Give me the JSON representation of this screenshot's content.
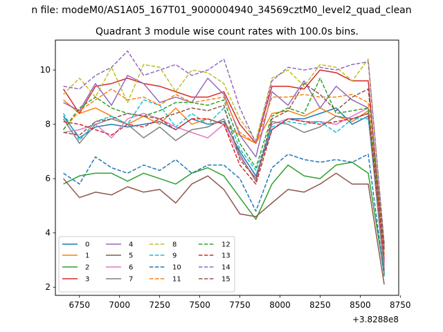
{
  "figure_title": "n file: modeM0/AS1A05_167T01_9000004940_34569cztM0_level2_quad_clean",
  "chart_data": {
    "type": "line",
    "title": "Quadrant 3 module wise count rates with 100.0s bins.",
    "xlabel": "",
    "ylabel": "",
    "x_offset_label": "+3.8288e8",
    "xlim": [
      6600,
      8740
    ],
    "ylim": [
      1.7,
      11.1
    ],
    "xticks": [
      6750,
      7000,
      7250,
      7500,
      7750,
      8000,
      8250,
      8500,
      8750
    ],
    "yticks": [
      2,
      4,
      6,
      8,
      10
    ],
    "grid": false,
    "legend_position": "lower-left",
    "x": [
      6650,
      6750,
      6850,
      6950,
      7050,
      7150,
      7250,
      7350,
      7450,
      7550,
      7650,
      7750,
      7850,
      7950,
      8050,
      8150,
      8250,
      8350,
      8450,
      8550,
      8650
    ],
    "series": [
      {
        "name": "0",
        "color": "#1f77b4",
        "dash": "solid",
        "values": [
          8.3,
          7.5,
          7.9,
          8.0,
          7.9,
          8.0,
          8.1,
          7.8,
          8.2,
          8.0,
          8.1,
          7.0,
          6.1,
          7.8,
          8.2,
          8.2,
          8.4,
          8.6,
          8.0,
          8.3,
          2.6
        ]
      },
      {
        "name": "1",
        "color": "#ff7f0e",
        "dash": "solid",
        "values": [
          8.9,
          8.4,
          8.6,
          8.3,
          8.0,
          8.3,
          8.0,
          8.6,
          8.0,
          8.2,
          8.0,
          7.6,
          7.3,
          8.4,
          8.5,
          8.3,
          8.6,
          8.3,
          8.1,
          8.5,
          2.8
        ]
      },
      {
        "name": "2",
        "color": "#2ca02c",
        "dash": "solid",
        "values": [
          5.8,
          6.1,
          6.2,
          6.2,
          5.9,
          6.2,
          6.0,
          5.8,
          6.2,
          6.4,
          6.1,
          5.3,
          4.5,
          5.8,
          6.5,
          6.1,
          6.0,
          6.5,
          6.6,
          6.2,
          2.5
        ]
      },
      {
        "name": "3",
        "color": "#d62728",
        "dash": "solid",
        "values": [
          9.3,
          8.4,
          9.4,
          9.5,
          9.7,
          9.5,
          9.4,
          9.2,
          9.0,
          9.0,
          9.2,
          8.0,
          7.3,
          9.4,
          9.4,
          9.3,
          10.0,
          9.9,
          9.6,
          9.6,
          3.0
        ]
      },
      {
        "name": "4",
        "color": "#9467bd",
        "dash": "solid",
        "values": [
          8.8,
          8.5,
          9.5,
          8.7,
          9.8,
          9.5,
          8.8,
          9.0,
          8.8,
          9.7,
          9.1,
          7.6,
          6.8,
          9.2,
          8.7,
          9.6,
          8.6,
          9.4,
          8.9,
          8.6,
          2.9
        ]
      },
      {
        "name": "5",
        "color": "#8c564b",
        "dash": "solid",
        "values": [
          6.0,
          5.3,
          5.5,
          5.4,
          5.7,
          5.5,
          5.6,
          5.1,
          5.8,
          6.1,
          5.6,
          4.7,
          4.6,
          5.1,
          5.6,
          5.5,
          5.8,
          6.2,
          5.8,
          5.8,
          2.1
        ]
      },
      {
        "name": "6",
        "color": "#e377c2",
        "dash": "solid",
        "values": [
          7.7,
          7.8,
          8.0,
          7.5,
          8.2,
          8.4,
          8.2,
          7.9,
          7.7,
          7.5,
          8.0,
          6.8,
          6.0,
          8.0,
          8.2,
          8.1,
          8.1,
          8.0,
          8.3,
          8.6,
          2.7
        ]
      },
      {
        "name": "7",
        "color": "#7f7f7f",
        "dash": "solid",
        "values": [
          8.2,
          7.3,
          8.0,
          8.2,
          8.0,
          7.5,
          7.9,
          7.4,
          7.8,
          7.9,
          8.2,
          6.9,
          5.9,
          8.1,
          8.0,
          7.7,
          7.9,
          8.3,
          8.2,
          8.4,
          2.6
        ]
      },
      {
        "name": "8",
        "color": "#bcbd22",
        "dash": "dashed",
        "values": [
          9.1,
          9.7,
          9.0,
          10.1,
          8.8,
          10.2,
          10.1,
          9.2,
          10.0,
          9.9,
          9.5,
          8.2,
          7.4,
          9.7,
          10.0,
          9.4,
          10.2,
          10.1,
          9.6,
          10.4,
          3.5
        ]
      },
      {
        "name": "9",
        "color": "#17becf",
        "dash": "dashed",
        "values": [
          8.4,
          7.4,
          8.1,
          8.3,
          8.0,
          8.9,
          8.7,
          7.9,
          8.4,
          8.0,
          8.6,
          7.1,
          6.3,
          7.9,
          8.1,
          8.0,
          8.1,
          7.7,
          8.2,
          8.2,
          3.3
        ]
      },
      {
        "name": "10",
        "color": "#1f77b4",
        "dash": "dashed",
        "values": [
          6.2,
          5.8,
          6.8,
          6.4,
          6.2,
          6.5,
          6.3,
          6.7,
          6.2,
          6.5,
          6.5,
          6.0,
          4.8,
          6.4,
          6.9,
          6.7,
          6.6,
          6.7,
          6.6,
          6.9,
          2.4
        ]
      },
      {
        "name": "11",
        "color": "#ff7f0e",
        "dash": "dashed",
        "values": [
          7.8,
          8.5,
          8.9,
          9.3,
          8.9,
          9.0,
          8.7,
          9.1,
          8.8,
          8.9,
          9.0,
          7.7,
          7.3,
          9.0,
          9.0,
          9.1,
          9.0,
          9.0,
          9.1,
          8.8,
          3.2
        ]
      },
      {
        "name": "12",
        "color": "#2ca02c",
        "dash": "dashed",
        "values": [
          7.8,
          8.6,
          9.0,
          8.6,
          8.4,
          8.3,
          8.5,
          8.8,
          8.8,
          8.7,
          8.9,
          7.3,
          6.4,
          8.3,
          8.6,
          8.4,
          9.7,
          8.4,
          8.5,
          8.6,
          3.6
        ]
      },
      {
        "name": "13",
        "color": "#d62728",
        "dash": "dashed",
        "values": [
          8.1,
          8.0,
          7.8,
          7.6,
          8.0,
          7.9,
          8.2,
          7.8,
          8.2,
          8.2,
          8.0,
          6.5,
          5.8,
          7.8,
          8.2,
          8.1,
          8.0,
          8.1,
          8.2,
          8.4,
          3.1
        ]
      },
      {
        "name": "14",
        "color": "#9467bd",
        "dash": "dashed",
        "values": [
          9.4,
          9.3,
          9.8,
          10.1,
          10.7,
          9.8,
          10.0,
          10.2,
          9.8,
          10.0,
          10.4,
          8.6,
          7.3,
          9.6,
          10.1,
          10.0,
          10.1,
          10.0,
          10.2,
          10.3,
          3.6
        ]
      },
      {
        "name": "15",
        "color": "#8c564b",
        "dash": "dashed",
        "values": [
          7.7,
          7.6,
          8.1,
          8.2,
          8.4,
          8.3,
          8.2,
          8.4,
          8.6,
          8.5,
          8.7,
          6.7,
          6.0,
          8.2,
          8.5,
          9.5,
          9.1,
          8.5,
          9.0,
          9.3,
          3.4
        ]
      }
    ]
  }
}
